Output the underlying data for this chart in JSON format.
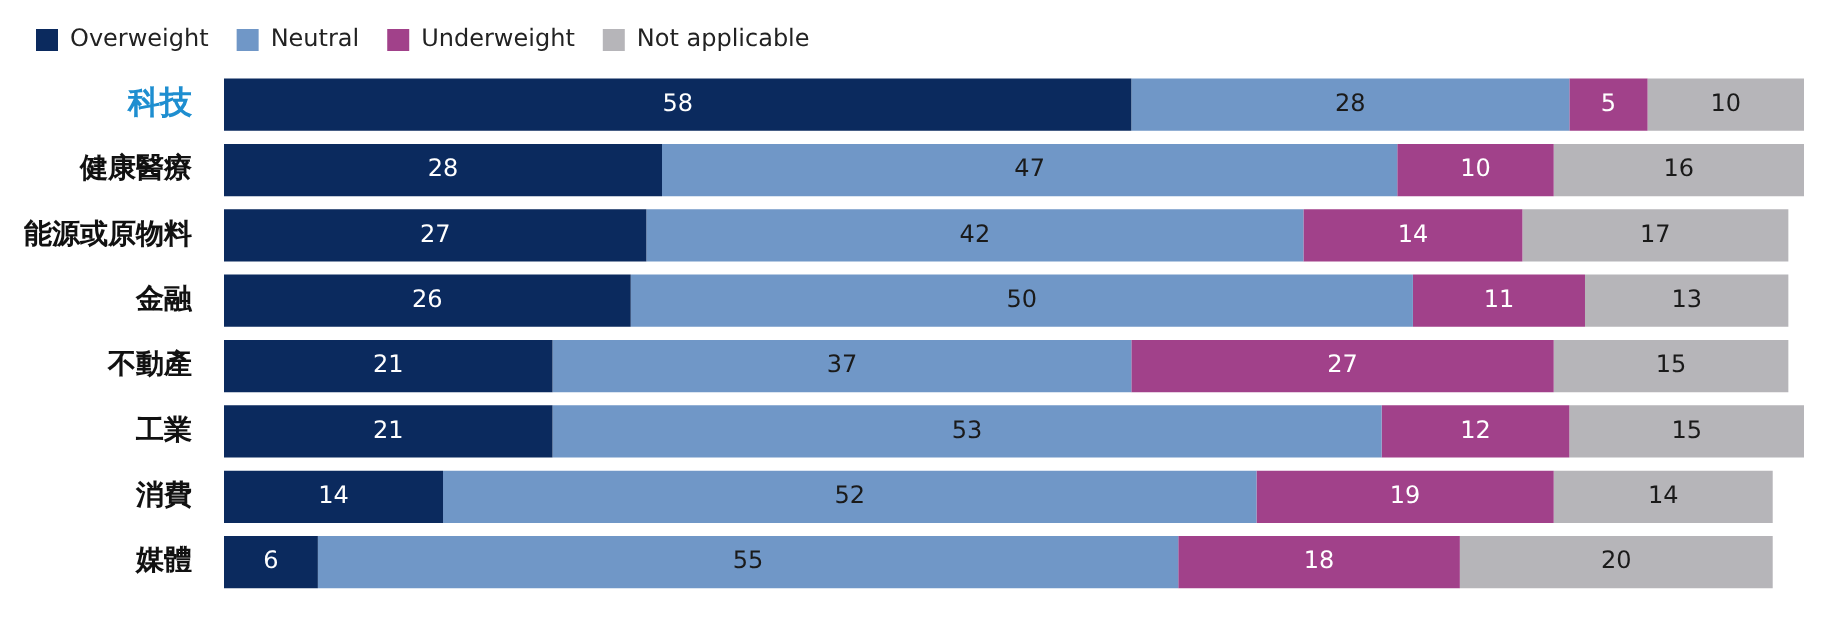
{
  "chart_data": {
    "type": "bar",
    "orientation": "horizontal",
    "stacked": true,
    "categories": [
      "科技",
      "健康醫療",
      "能源或原物料",
      "金融",
      "不動產",
      "工業",
      "消費",
      "媒體"
    ],
    "series": [
      {
        "name": "Overweight",
        "color": "#0b2a5e",
        "values": [
          58,
          28,
          27,
          26,
          21,
          21,
          14,
          6
        ]
      },
      {
        "name": "Neutral",
        "color": "#7097c7",
        "values": [
          28,
          47,
          42,
          50,
          37,
          53,
          52,
          55
        ]
      },
      {
        "name": "Underweight",
        "color": "#a1418a",
        "values": [
          5,
          10,
          14,
          11,
          27,
          12,
          19,
          18
        ]
      },
      {
        "name": "Not applicable",
        "color": "#b6b5b9",
        "values": [
          10,
          16,
          17,
          13,
          15,
          15,
          14,
          20
        ]
      }
    ],
    "xlim": [
      0,
      101
    ],
    "tick_labels": "y",
    "data_labels": true,
    "legend": "top left"
  }
}
